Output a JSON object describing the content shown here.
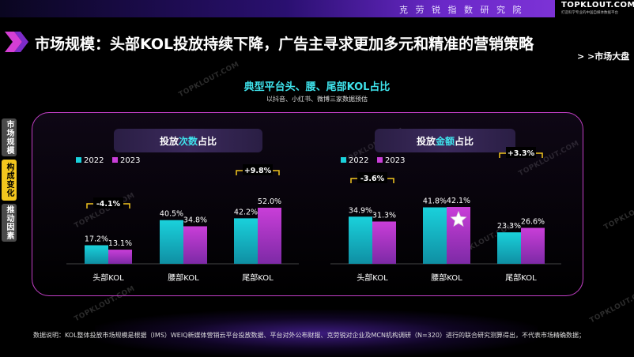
{
  "header": {
    "bar_title": "克 劳 锐 指 数 研 究 院",
    "brand_logo": "TOPKLOUT.COM",
    "brand_sub": "打造科学专业的中国自媒体数据平台"
  },
  "page": {
    "title": "市场规模：头部KOL投放持续下降，广告主寻求更加多元和精准的营销策略",
    "market_link": "> >市场大盘"
  },
  "side_tabs": [
    "市场规模",
    "构成变化",
    "推动因素"
  ],
  "watermark": "TOPKLOUT.COM",
  "chart": {
    "title": "典型平台头、腰、尾部KOL占比",
    "subtitle": "以抖音、小红书、微博三家数据预估"
  },
  "colors": {
    "series_2022": "#1ad1db",
    "series_2023": "#c93ed8",
    "accent_yellow": "#f3c61e",
    "panel_border": "#c23fc6"
  },
  "chart_data": [
    {
      "type": "bar",
      "title_prefix": "投放",
      "title_highlight": "次数",
      "title_suffix": "占比",
      "categories": [
        "头部KOL",
        "腰部KOL",
        "尾部KOL"
      ],
      "series": [
        {
          "name": "2022",
          "values": [
            17.2,
            40.5,
            42.2
          ],
          "labels": [
            "17.2%",
            "40.5%",
            "42.2%"
          ]
        },
        {
          "name": "2023",
          "values": [
            13.1,
            34.8,
            52.0
          ],
          "labels": [
            "13.1%",
            "34.8%",
            "52.0%"
          ]
        }
      ],
      "changes": [
        "-4.1%",
        "",
        "+9.8%"
      ],
      "ylim": [
        0,
        60
      ]
    },
    {
      "type": "bar",
      "title_prefix": "投放",
      "title_highlight": "金额",
      "title_suffix": "占比",
      "categories": [
        "头部KOL",
        "腰部KOL",
        "尾部KOL"
      ],
      "series": [
        {
          "name": "2022",
          "values": [
            34.9,
            41.8,
            23.3
          ],
          "labels": [
            "34.9%",
            "41.8%",
            "23.3%"
          ]
        },
        {
          "name": "2023",
          "values": [
            31.3,
            42.1,
            26.6
          ],
          "labels": [
            "31.3%",
            "42.1%",
            "26.6%"
          ]
        }
      ],
      "changes": [
        "-3.6%",
        "",
        "+3.3%"
      ],
      "star_on_category": "腰部KOL",
      "ylim": [
        0,
        60
      ]
    }
  ],
  "footnote": "数据说明：KOL整体投放市场规模是根据（IMS）WEIQ新媒体营销云平台投放数据、平台对外公布财报、克劳锐对企业及MCN机构调研（N=320）进行的联合研究测算得出，不代表市场精确数据；"
}
